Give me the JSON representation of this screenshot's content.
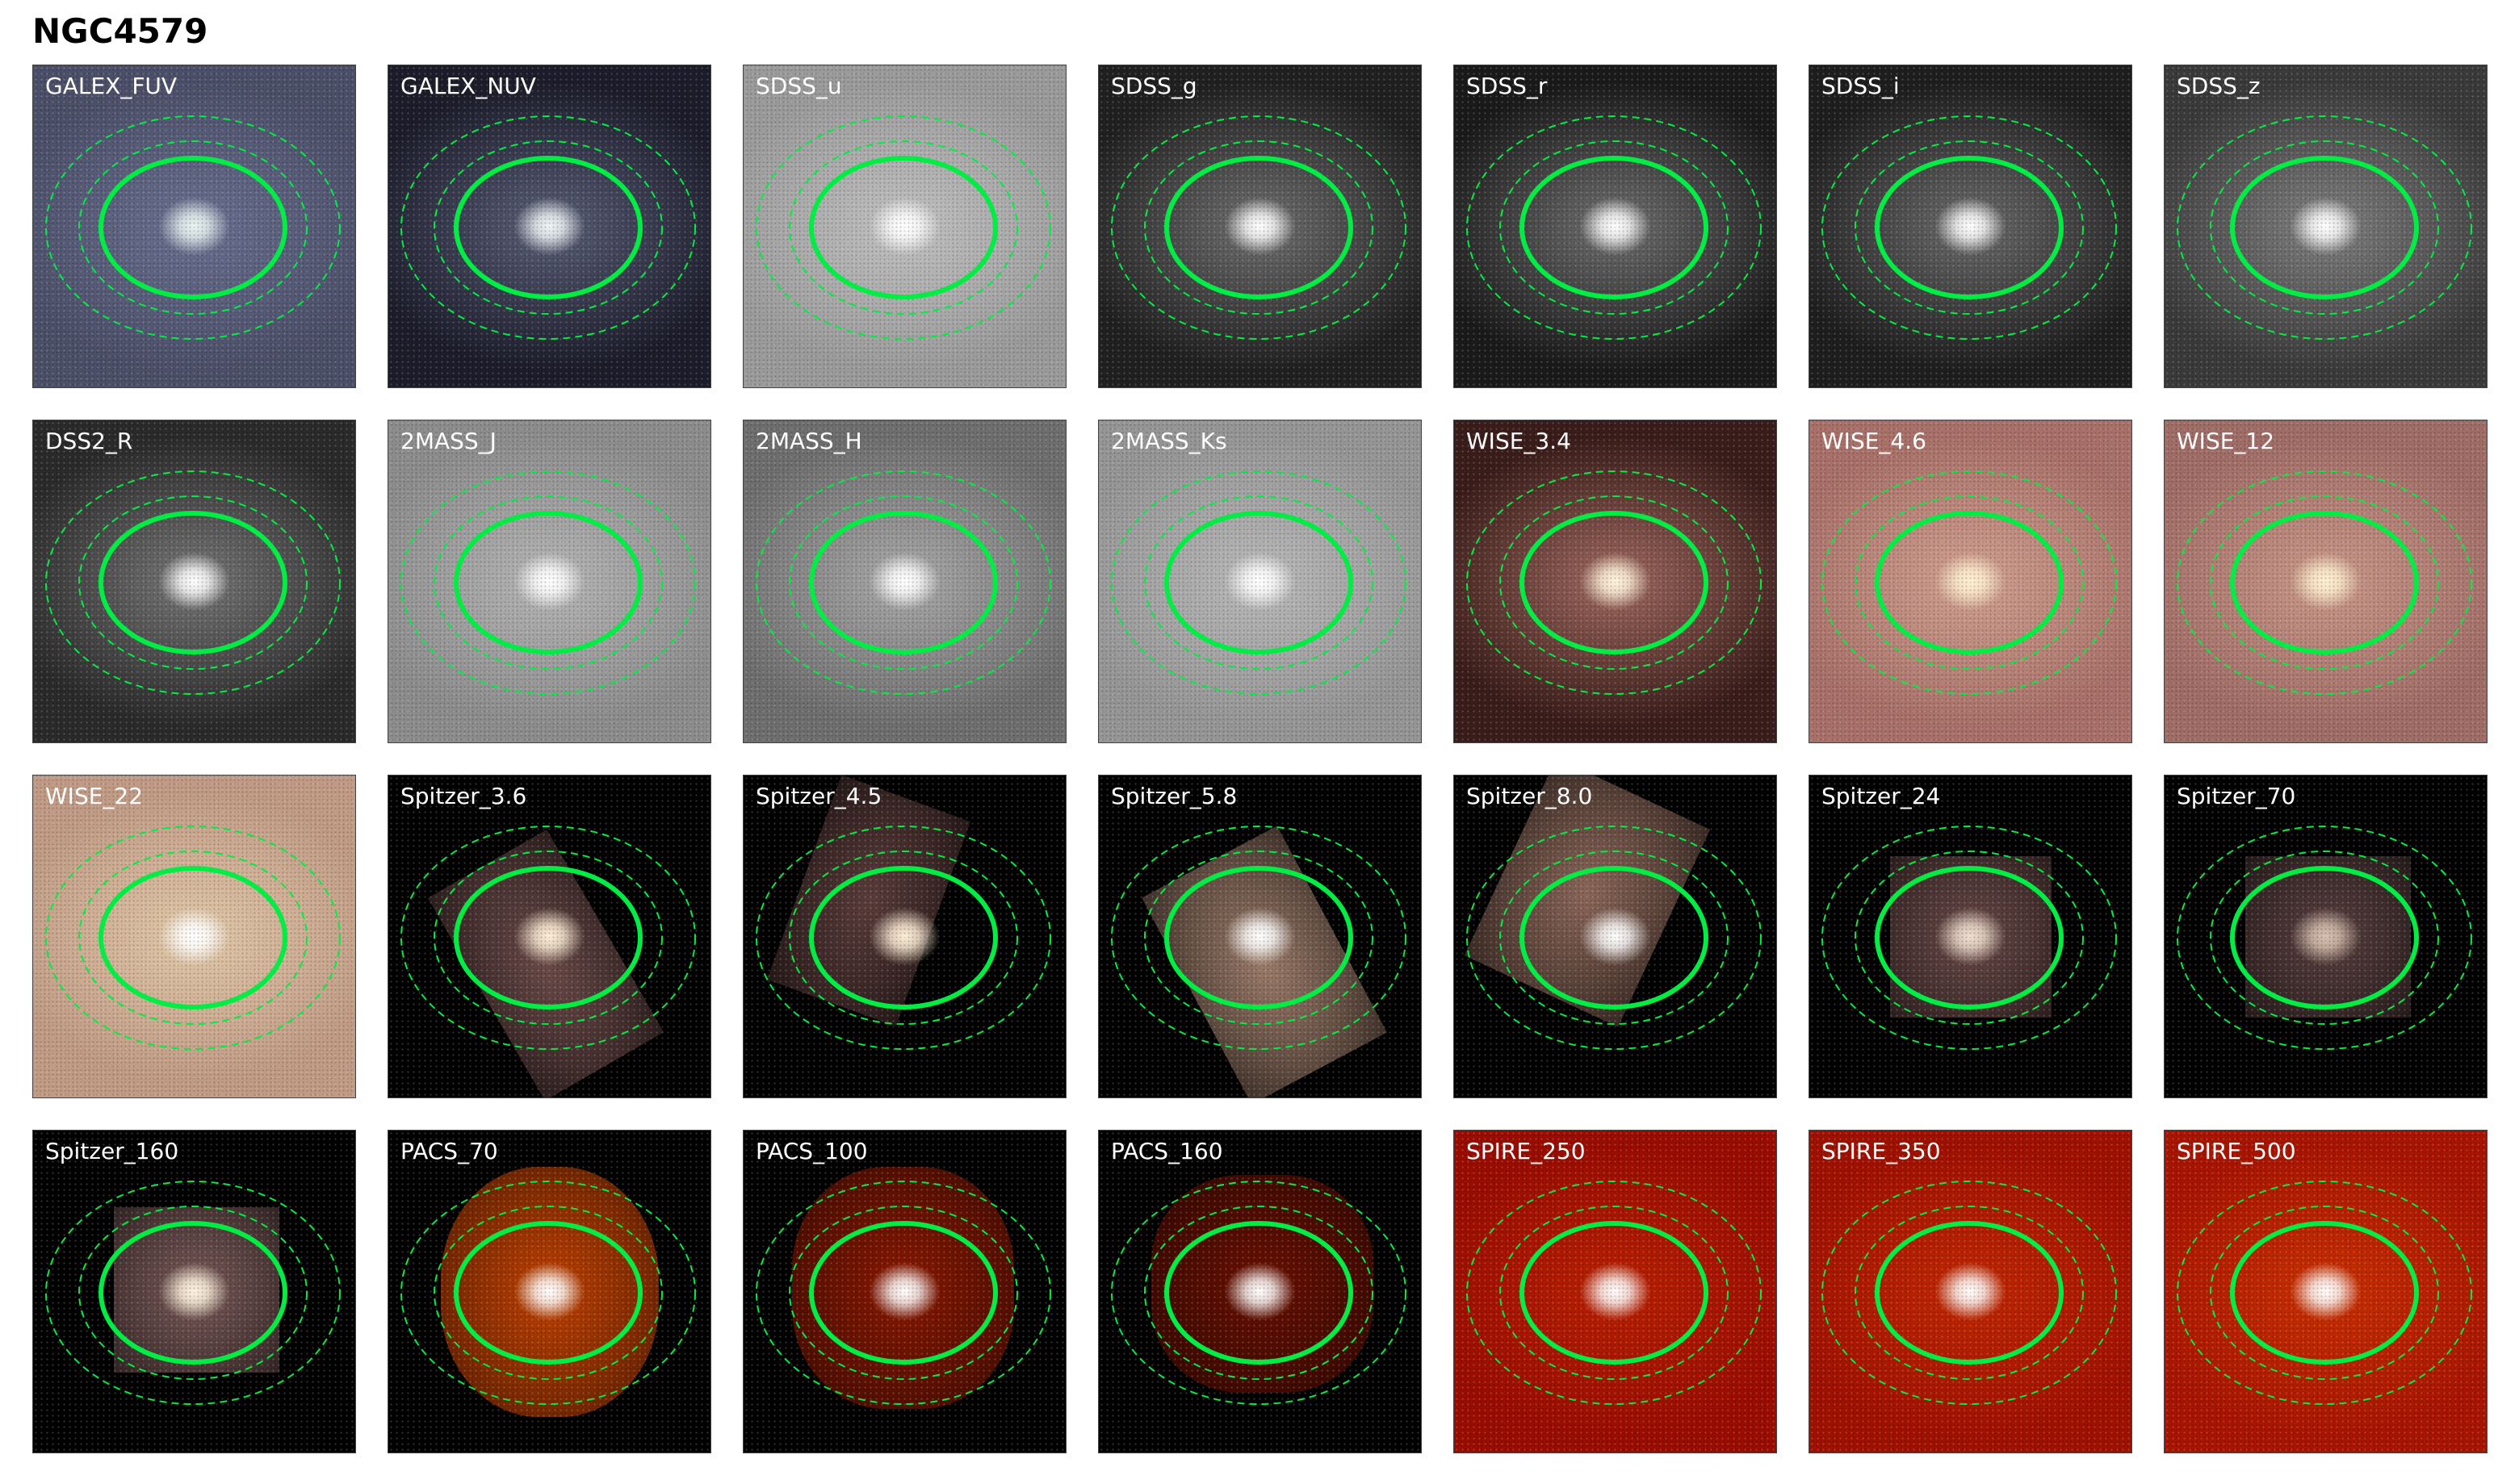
{
  "title": "NGC4579",
  "aperture_color": "#00ee44",
  "panels": [
    {
      "label": "GALEX_FUV",
      "bg": "#4b4f68",
      "core": "#e8f4f2",
      "halo": "#6a7090",
      "footprint": null
    },
    {
      "label": "GALEX_NUV",
      "bg": "#1c1c2a",
      "core": "#f0f6f6",
      "halo": "#5a6078",
      "footprint": null
    },
    {
      "label": "SDSS_u",
      "bg": "#9a9a9a",
      "core": "#ffffff",
      "halo": "#c0c0c0",
      "footprint": null
    },
    {
      "label": "SDSS_g",
      "bg": "#202020",
      "core": "#ffffff",
      "halo": "#707070",
      "footprint": null
    },
    {
      "label": "SDSS_r",
      "bg": "#1a1a1a",
      "core": "#ffffff",
      "halo": "#707070",
      "footprint": null
    },
    {
      "label": "SDSS_i",
      "bg": "#1e1e1e",
      "core": "#ffffff",
      "halo": "#6c6c6c",
      "footprint": null
    },
    {
      "label": "SDSS_z",
      "bg": "#3a3a3a",
      "core": "#ffffff",
      "halo": "#808080",
      "footprint": null
    },
    {
      "label": "DSS2_R",
      "bg": "#2a2a2a",
      "core": "#ffffff",
      "halo": "#777777",
      "footprint": null
    },
    {
      "label": "2MASS_J",
      "bg": "#8c8c8c",
      "core": "#ffffff",
      "halo": "#b4b4b4",
      "footprint": null
    },
    {
      "label": "2MASS_H",
      "bg": "#6e6e6e",
      "core": "#ffffff",
      "halo": "#a8a8a8",
      "footprint": null
    },
    {
      "label": "2MASS_Ks",
      "bg": "#959595",
      "core": "#ffffff",
      "halo": "#b8b8b8",
      "footprint": null
    },
    {
      "label": "WISE_3.4",
      "bg": "#3a1d1a",
      "core": "#fff4dc",
      "halo": "#a06a60",
      "footprint": null
    },
    {
      "label": "WISE_4.6",
      "bg": "#a87068",
      "core": "#fff0d0",
      "halo": "#d0a090",
      "footprint": null
    },
    {
      "label": "WISE_12",
      "bg": "#a06c66",
      "core": "#fff0d0",
      "halo": "#c89888",
      "footprint": null
    },
    {
      "label": "WISE_22",
      "bg": "#c09a84",
      "core": "#ffffff",
      "halo": "#e0c8a8",
      "footprint": null
    },
    {
      "label": "Spitzer_3.6",
      "bg": "#000000",
      "core": "#fff0d8",
      "halo": "#6a4a48",
      "footprint": "fp-a"
    },
    {
      "label": "Spitzer_4.5",
      "bg": "#000000",
      "core": "#fff0d8",
      "halo": "#5a3c3a",
      "footprint": "fp-b"
    },
    {
      "label": "Spitzer_5.8",
      "bg": "#000000",
      "core": "#ffffff",
      "halo": "#9a7a68",
      "footprint": "fp-c"
    },
    {
      "label": "Spitzer_8.0",
      "bg": "#000000",
      "core": "#ffffff",
      "halo": "#8a6658",
      "footprint": "fp-d"
    },
    {
      "label": "Spitzer_24",
      "bg": "#000000",
      "core": "#f0e0d0",
      "halo": "#6a4a48",
      "footprint": "fp-e"
    },
    {
      "label": "Spitzer_70",
      "bg": "#000000",
      "core": "#d8c0b0",
      "halo": "#5a4040",
      "footprint": "fp-f"
    },
    {
      "label": "Spitzer_160",
      "bg": "#000000",
      "core": "#fff4e0",
      "halo": "#7a5a58",
      "footprint": "fp-g"
    },
    {
      "label": "PACS_70",
      "bg": "#000000",
      "core": "#ffffff",
      "halo": "#c04000",
      "footprint": "fp-h"
    },
    {
      "label": "PACS_100",
      "bg": "#000000",
      "core": "#ffffff",
      "halo": "#8a1800",
      "footprint": "fp-i"
    },
    {
      "label": "PACS_160",
      "bg": "#000000",
      "core": "#ffffff",
      "halo": "#6a1000",
      "footprint": "fp-j"
    },
    {
      "label": "SPIRE_250",
      "bg": "#9a0c00",
      "core": "#ffffff",
      "halo": "#b82000",
      "footprint": null
    },
    {
      "label": "SPIRE_350",
      "bg": "#a01000",
      "core": "#ffffff",
      "halo": "#c02800",
      "footprint": null
    },
    {
      "label": "SPIRE_500",
      "bg": "#a81400",
      "core": "#ffffff",
      "halo": "#c83000",
      "footprint": null
    }
  ]
}
